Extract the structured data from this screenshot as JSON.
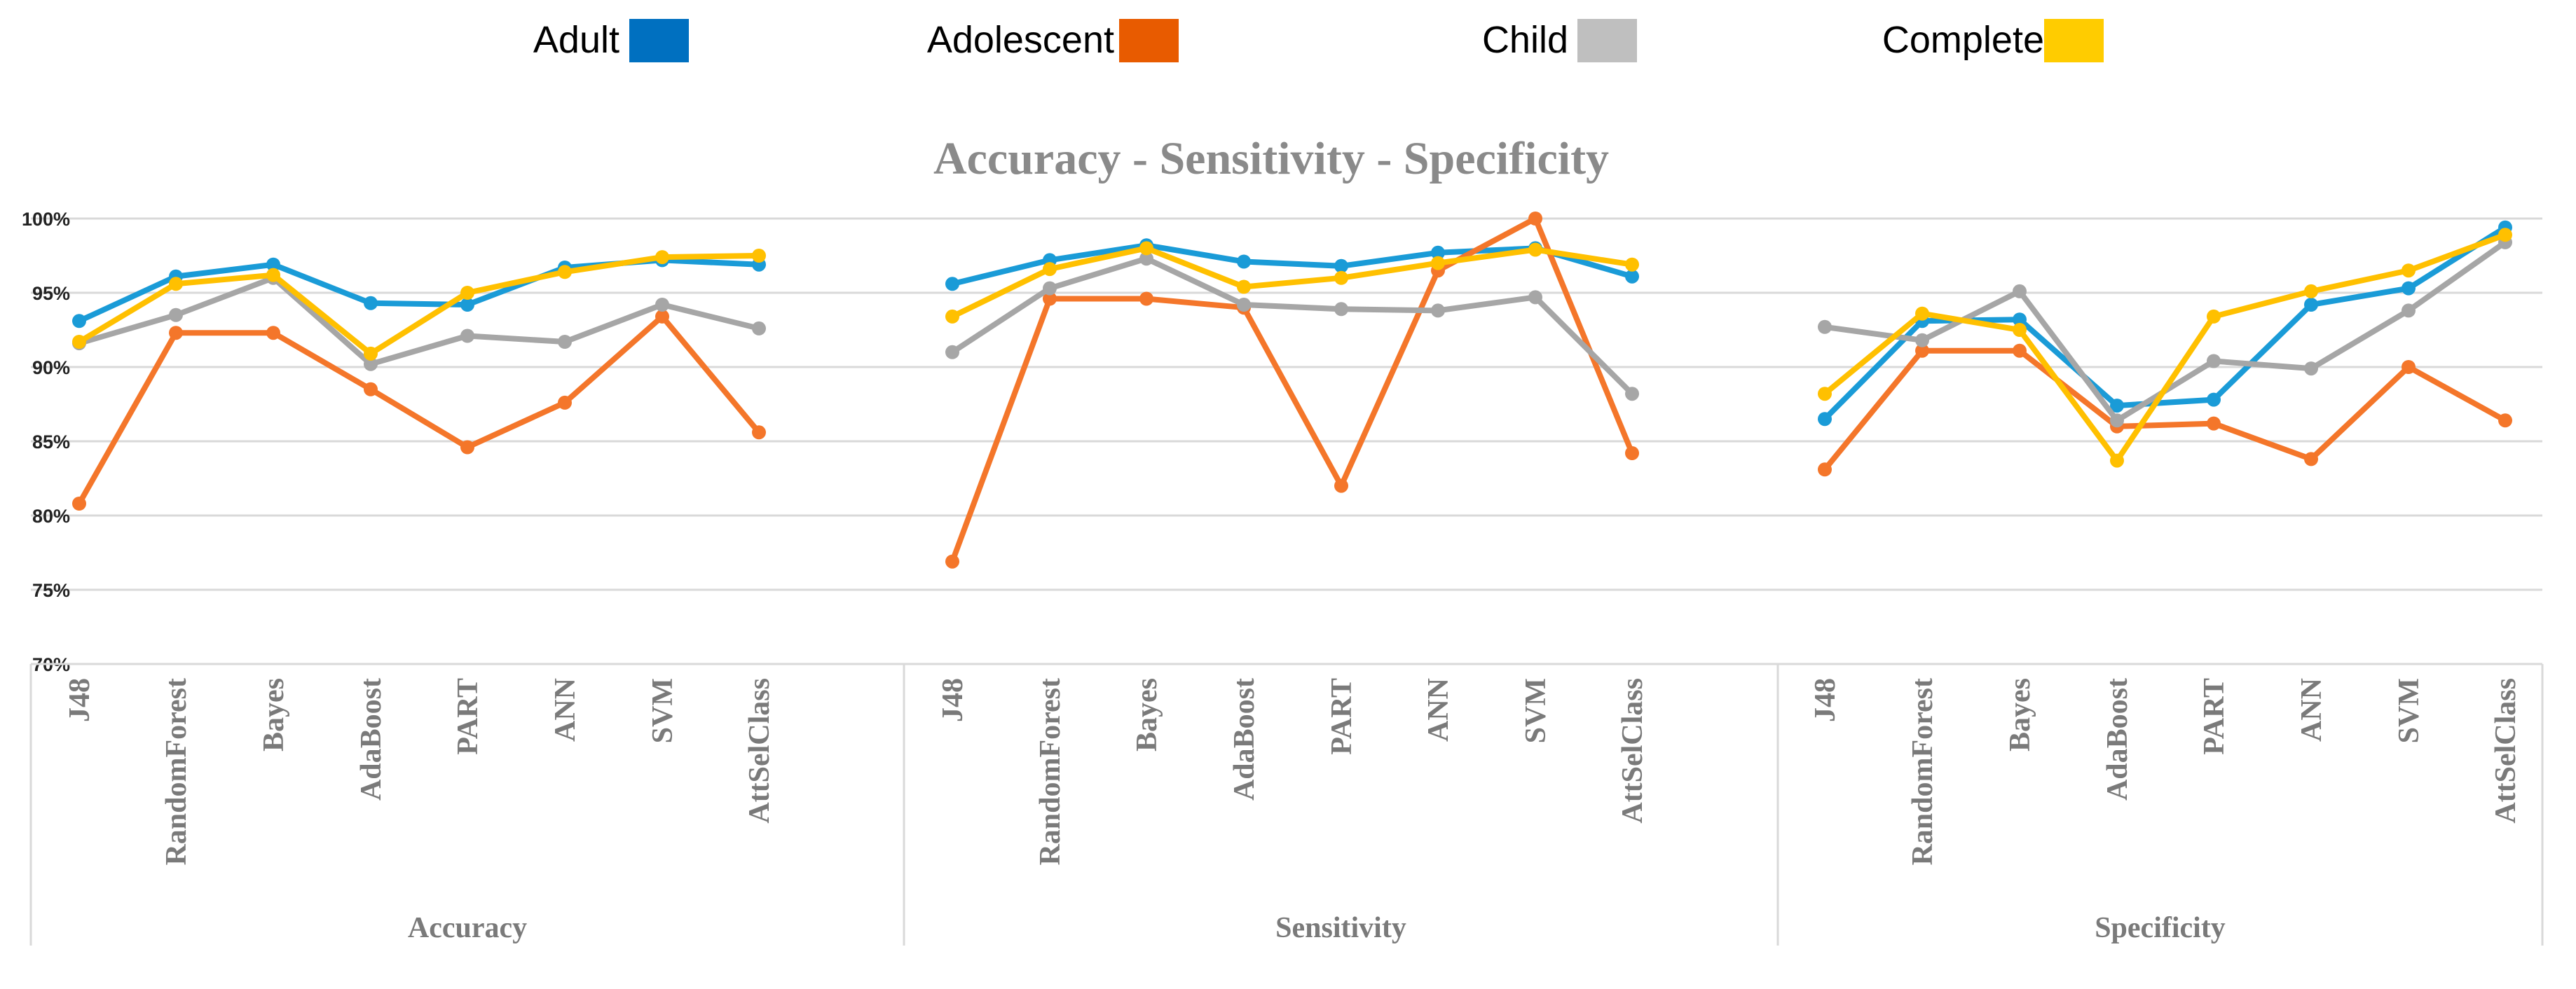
{
  "chart_data": {
    "type": "line",
    "title": "Accuracy  - Sensitivity -  Specificity",
    "y_axis": {
      "min": 0.7,
      "max": 1.0,
      "step": 0.05,
      "tick_labels": [
        "70%",
        "75%",
        "80%",
        "85%",
        "90%",
        "95%",
        "100%"
      ]
    },
    "grid": true,
    "legend_position": "top",
    "groups": [
      {
        "name": "Accuracy",
        "categories": [
          "J48",
          "RandomForest",
          "Bayes",
          "AdaBoost",
          "PART",
          "ANN",
          "SVM",
          "AttSelClass"
        ]
      },
      {
        "name": "Sensitivity",
        "categories": [
          "J48",
          "RandomForest",
          "Bayes",
          "AdaBoost",
          "PART",
          "ANN",
          "SVM",
          "AttSelClass"
        ]
      },
      {
        "name": "Specificity",
        "categories": [
          "J48",
          "RandomForest",
          "Bayes",
          "AdaBoost",
          "PART",
          "ANN",
          "SVM",
          "AttSelClass"
        ]
      }
    ],
    "series": [
      {
        "name": "Adult",
        "color": "#1a9bd7",
        "legend_color": "#0070c0",
        "values": [
          [
            0.931,
            0.961,
            0.969,
            0.943,
            0.942,
            0.967,
            0.972,
            0.969
          ],
          [
            0.956,
            0.972,
            0.982,
            0.971,
            0.968,
            0.977,
            0.98,
            0.961
          ],
          [
            0.865,
            0.931,
            0.932,
            0.874,
            0.878,
            0.942,
            0.953,
            0.994
          ]
        ]
      },
      {
        "name": "Adolescent",
        "color": "#f4762a",
        "legend_color": "#e85b00",
        "values": [
          [
            0.808,
            0.923,
            0.923,
            0.885,
            0.846,
            0.876,
            0.934,
            0.856
          ],
          [
            0.769,
            0.946,
            0.946,
            0.94,
            0.82,
            0.965,
            1.0,
            0.842
          ],
          [
            0.831,
            0.911,
            0.911,
            0.86,
            0.862,
            0.838,
            0.9,
            0.864
          ]
        ]
      },
      {
        "name": "Child",
        "color": "#a6a6a6",
        "legend_color": "#bfbfbf",
        "values": [
          [
            0.916,
            0.935,
            0.96,
            0.902,
            0.921,
            0.917,
            0.942,
            0.926
          ],
          [
            0.91,
            0.953,
            0.973,
            0.942,
            0.939,
            0.938,
            0.947,
            0.882
          ],
          [
            0.927,
            0.918,
            0.951,
            0.864,
            0.904,
            0.899,
            0.938,
            0.984
          ]
        ]
      },
      {
        "name": "Complete",
        "color": "#ffc000",
        "legend_color": "#ffcc00",
        "values": [
          [
            0.917,
            0.956,
            0.962,
            0.909,
            0.95,
            0.964,
            0.974,
            0.975
          ],
          [
            0.934,
            0.966,
            0.98,
            0.954,
            0.96,
            0.97,
            0.979,
            0.969
          ],
          [
            0.882,
            0.936,
            0.925,
            0.837,
            0.934,
            0.951,
            0.965,
            0.989
          ]
        ]
      }
    ]
  }
}
